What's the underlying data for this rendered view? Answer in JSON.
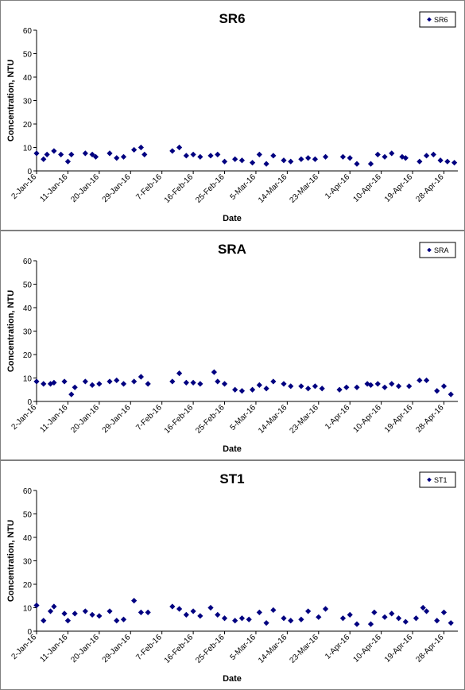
{
  "chart_data": [
    {
      "type": "scatter",
      "title": "SR6",
      "xlabel": "Date",
      "ylabel": "Concentration, NTU",
      "ylim": [
        0,
        60
      ],
      "yticks": [
        "0",
        "10",
        "20",
        "30",
        "40",
        "50",
        "60"
      ],
      "xticks": [
        "2-Jan-16",
        "11-Jan-16",
        "20-Jan-16",
        "29-Jan-16",
        "7-Feb-16",
        "16-Feb-16",
        "25-Feb-16",
        "5-Mar-16",
        "14-Mar-16",
        "23-Mar-16",
        "1-Apr-16",
        "10-Apr-16",
        "19-Apr-16",
        "28-Apr-16"
      ],
      "legend_position": "top-right",
      "grid": false,
      "color": "#000080",
      "series": [
        {
          "name": "SR6",
          "points": [
            [
              "2016-01-02",
              7.5
            ],
            [
              "2016-01-04",
              5.0
            ],
            [
              "2016-01-05",
              7.0
            ],
            [
              "2016-01-07",
              8.5
            ],
            [
              "2016-01-09",
              7.0
            ],
            [
              "2016-01-11",
              4.0
            ],
            [
              "2016-01-12",
              7.0
            ],
            [
              "2016-01-16",
              7.5
            ],
            [
              "2016-01-18",
              7.0
            ],
            [
              "2016-01-19",
              6.0
            ],
            [
              "2016-01-23",
              7.5
            ],
            [
              "2016-01-25",
              5.5
            ],
            [
              "2016-01-27",
              6.0
            ],
            [
              "2016-01-30",
              9.0
            ],
            [
              "2016-02-01",
              10.0
            ],
            [
              "2016-02-02",
              7.0
            ],
            [
              "2016-02-10",
              8.5
            ],
            [
              "2016-02-12",
              10.0
            ],
            [
              "2016-02-14",
              6.5
            ],
            [
              "2016-02-16",
              7.0
            ],
            [
              "2016-02-18",
              6.0
            ],
            [
              "2016-02-21",
              6.5
            ],
            [
              "2016-02-23",
              7.0
            ],
            [
              "2016-02-25",
              4.0
            ],
            [
              "2016-02-28",
              5.0
            ],
            [
              "2016-03-01",
              4.5
            ],
            [
              "2016-03-04",
              3.5
            ],
            [
              "2016-03-06",
              7.0
            ],
            [
              "2016-03-08",
              3.0
            ],
            [
              "2016-03-10",
              6.5
            ],
            [
              "2016-03-13",
              4.5
            ],
            [
              "2016-03-15",
              4.0
            ],
            [
              "2016-03-18",
              5.0
            ],
            [
              "2016-03-20",
              5.5
            ],
            [
              "2016-03-22",
              5.0
            ],
            [
              "2016-03-25",
              6.0
            ],
            [
              "2016-03-30",
              6.0
            ],
            [
              "2016-04-01",
              5.5
            ],
            [
              "2016-04-03",
              3.0
            ],
            [
              "2016-04-07",
              3.0
            ],
            [
              "2016-04-09",
              7.0
            ],
            [
              "2016-04-11",
              6.0
            ],
            [
              "2016-04-13",
              7.5
            ],
            [
              "2016-04-16",
              6.0
            ],
            [
              "2016-04-17",
              5.5
            ],
            [
              "2016-04-21",
              4.0
            ],
            [
              "2016-04-23",
              6.5
            ],
            [
              "2016-04-25",
              7.0
            ],
            [
              "2016-04-27",
              4.5
            ],
            [
              "2016-04-29",
              4.0
            ],
            [
              "2016-05-01",
              3.5
            ]
          ]
        }
      ]
    },
    {
      "type": "scatter",
      "title": "SRA",
      "xlabel": "Date",
      "ylabel": "Concentration, NTU",
      "ylim": [
        0,
        60
      ],
      "yticks": [
        "0",
        "10",
        "20",
        "30",
        "40",
        "50",
        "60"
      ],
      "xticks": [
        "2-Jan-16",
        "11-Jan-16",
        "20-Jan-16",
        "29-Jan-16",
        "7-Feb-16",
        "16-Feb-16",
        "25-Feb-16",
        "5-Mar-16",
        "14-Mar-16",
        "23-Mar-16",
        "1-Apr-16",
        "10-Apr-16",
        "19-Apr-16",
        "28-Apr-16"
      ],
      "legend_position": "top-right",
      "grid": false,
      "color": "#000080",
      "series": [
        {
          "name": "SRA",
          "points": [
            [
              "2016-01-02",
              8.5
            ],
            [
              "2016-01-04",
              7.5
            ],
            [
              "2016-01-06",
              7.5
            ],
            [
              "2016-01-07",
              8.0
            ],
            [
              "2016-01-10",
              8.5
            ],
            [
              "2016-01-12",
              3.0
            ],
            [
              "2016-01-13",
              6.0
            ],
            [
              "2016-01-16",
              8.5
            ],
            [
              "2016-01-18",
              7.0
            ],
            [
              "2016-01-20",
              7.5
            ],
            [
              "2016-01-23",
              8.5
            ],
            [
              "2016-01-25",
              9.0
            ],
            [
              "2016-01-27",
              7.5
            ],
            [
              "2016-01-30",
              8.5
            ],
            [
              "2016-02-01",
              10.5
            ],
            [
              "2016-02-03",
              7.5
            ],
            [
              "2016-02-10",
              8.5
            ],
            [
              "2016-02-12",
              12.0
            ],
            [
              "2016-02-14",
              8.0
            ],
            [
              "2016-02-16",
              8.0
            ],
            [
              "2016-02-18",
              7.5
            ],
            [
              "2016-02-22",
              12.5
            ],
            [
              "2016-02-23",
              8.5
            ],
            [
              "2016-02-25",
              7.5
            ],
            [
              "2016-02-28",
              5.0
            ],
            [
              "2016-03-01",
              4.5
            ],
            [
              "2016-03-04",
              5.0
            ],
            [
              "2016-03-06",
              7.0
            ],
            [
              "2016-03-08",
              5.5
            ],
            [
              "2016-03-10",
              8.5
            ],
            [
              "2016-03-13",
              7.5
            ],
            [
              "2016-03-15",
              6.5
            ],
            [
              "2016-03-18",
              6.5
            ],
            [
              "2016-03-20",
              5.5
            ],
            [
              "2016-03-22",
              6.5
            ],
            [
              "2016-03-24",
              5.5
            ],
            [
              "2016-03-29",
              5.0
            ],
            [
              "2016-03-31",
              6.0
            ],
            [
              "2016-04-03",
              6.0
            ],
            [
              "2016-04-06",
              7.5
            ],
            [
              "2016-04-07",
              7.0
            ],
            [
              "2016-04-09",
              7.5
            ],
            [
              "2016-04-11",
              6.0
            ],
            [
              "2016-04-13",
              7.5
            ],
            [
              "2016-04-15",
              6.5
            ],
            [
              "2016-04-18",
              6.5
            ],
            [
              "2016-04-21",
              9.0
            ],
            [
              "2016-04-23",
              9.0
            ],
            [
              "2016-04-26",
              4.5
            ],
            [
              "2016-04-28",
              6.5
            ],
            [
              "2016-04-30",
              3.0
            ]
          ]
        }
      ]
    },
    {
      "type": "scatter",
      "title": "ST1",
      "xlabel": "Date",
      "ylabel": "Concentration, NTU",
      "ylim": [
        0,
        60
      ],
      "yticks": [
        "0",
        "10",
        "20",
        "30",
        "40",
        "50",
        "60"
      ],
      "xticks": [
        "2-Jan-16",
        "11-Jan-16",
        "20-Jan-16",
        "29-Jan-16",
        "7-Feb-16",
        "16-Feb-16",
        "25-Feb-16",
        "5-Mar-16",
        "14-Mar-16",
        "23-Mar-16",
        "1-Apr-16",
        "10-Apr-16",
        "19-Apr-16",
        "28-Apr-16"
      ],
      "legend_position": "top-right",
      "grid": false,
      "color": "#000080",
      "series": [
        {
          "name": "ST1",
          "points": [
            [
              "2016-01-02",
              11.0
            ],
            [
              "2016-01-04",
              4.5
            ],
            [
              "2016-01-06",
              8.5
            ],
            [
              "2016-01-07",
              10.5
            ],
            [
              "2016-01-10",
              7.5
            ],
            [
              "2016-01-11",
              4.5
            ],
            [
              "2016-01-13",
              7.5
            ],
            [
              "2016-01-16",
              8.5
            ],
            [
              "2016-01-18",
              7.0
            ],
            [
              "2016-01-20",
              6.5
            ],
            [
              "2016-01-23",
              8.5
            ],
            [
              "2016-01-25",
              4.5
            ],
            [
              "2016-01-27",
              5.0
            ],
            [
              "2016-01-30",
              13.0
            ],
            [
              "2016-02-01",
              8.0
            ],
            [
              "2016-02-03",
              8.0
            ],
            [
              "2016-02-10",
              10.5
            ],
            [
              "2016-02-12",
              9.5
            ],
            [
              "2016-02-14",
              7.0
            ],
            [
              "2016-02-16",
              8.5
            ],
            [
              "2016-02-18",
              6.5
            ],
            [
              "2016-02-21",
              10.0
            ],
            [
              "2016-02-23",
              7.0
            ],
            [
              "2016-02-25",
              5.5
            ],
            [
              "2016-02-28",
              4.5
            ],
            [
              "2016-03-01",
              5.5
            ],
            [
              "2016-03-03",
              5.0
            ],
            [
              "2016-03-06",
              8.0
            ],
            [
              "2016-03-08",
              3.5
            ],
            [
              "2016-03-10",
              9.0
            ],
            [
              "2016-03-13",
              5.5
            ],
            [
              "2016-03-15",
              4.5
            ],
            [
              "2016-03-18",
              5.0
            ],
            [
              "2016-03-20",
              8.5
            ],
            [
              "2016-03-23",
              6.0
            ],
            [
              "2016-03-25",
              9.5
            ],
            [
              "2016-03-30",
              5.5
            ],
            [
              "2016-04-01",
              7.0
            ],
            [
              "2016-04-03",
              3.0
            ],
            [
              "2016-04-07",
              3.0
            ],
            [
              "2016-04-08",
              8.0
            ],
            [
              "2016-04-11",
              6.0
            ],
            [
              "2016-04-13",
              7.5
            ],
            [
              "2016-04-15",
              5.5
            ],
            [
              "2016-04-17",
              4.0
            ],
            [
              "2016-04-20",
              5.5
            ],
            [
              "2016-04-22",
              10.0
            ],
            [
              "2016-04-23",
              8.5
            ],
            [
              "2016-04-26",
              4.5
            ],
            [
              "2016-04-28",
              8.0
            ],
            [
              "2016-04-30",
              3.5
            ]
          ]
        }
      ]
    }
  ]
}
